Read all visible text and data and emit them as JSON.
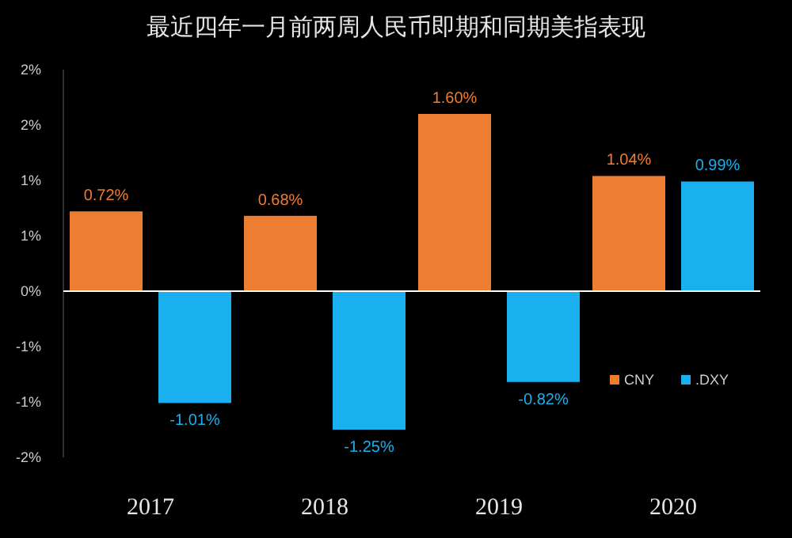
{
  "chart_data": {
    "type": "bar",
    "title": "最近四年一月前两周人民币即期和同期美指表现",
    "categories": [
      "2017",
      "2018",
      "2019",
      "2020"
    ],
    "series": [
      {
        "name": "CNY",
        "color": "#ed7d31",
        "values": [
          0.72,
          0.68,
          1.6,
          1.04
        ],
        "value_labels": [
          "0.72%",
          "0.68%",
          "1.60%",
          "1.04%"
        ]
      },
      {
        "name": ".DXY",
        "color": "#1ab0f0",
        "values": [
          -1.01,
          -1.25,
          -0.82,
          0.99
        ],
        "value_labels": [
          "-1.01%",
          "-1.25%",
          "-0.82%",
          "0.99%"
        ]
      }
    ],
    "ylim": [
      -1.5,
      2.0
    ],
    "yticks": [
      {
        "value": 2,
        "label": "2%"
      },
      {
        "value": 1.5,
        "label": "2%"
      },
      {
        "value": 1,
        "label": "1%"
      },
      {
        "value": 0.5,
        "label": "1%"
      },
      {
        "value": 0,
        "label": "0%"
      },
      {
        "value": -0.5,
        "label": "-1%"
      },
      {
        "value": -1,
        "label": "-1%"
      },
      {
        "value": -1.5,
        "label": "-2%"
      }
    ],
    "legend": "bottom right"
  }
}
